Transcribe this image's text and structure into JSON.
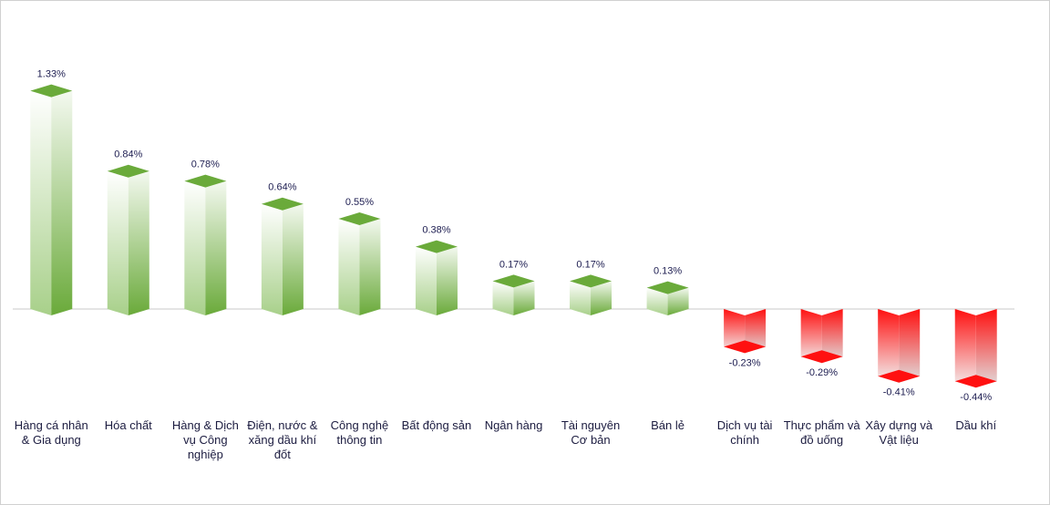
{
  "chart_data": {
    "type": "bar",
    "categories": [
      "Hàng cá nhân & Gia dụng",
      "Hóa chất",
      "Hàng & Dịch vụ Công nghiệp",
      "Điện, nước & xăng dầu khí đốt",
      "Công nghệ thông tin",
      "Bất động sản",
      "Ngân hàng",
      "Tài nguyên Cơ bản",
      "Bán lẻ",
      "Dịch vụ tài chính",
      "Thực phẩm và đồ uống",
      "Xây dựng và Vật liệu",
      "Dầu khí"
    ],
    "values": [
      1.33,
      0.84,
      0.78,
      0.64,
      0.55,
      0.38,
      0.17,
      0.17,
      0.13,
      -0.23,
      -0.29,
      -0.41,
      -0.44
    ],
    "value_labels": [
      "1.33%",
      "0.84%",
      "0.78%",
      "0.64%",
      "0.55%",
      "0.38%",
      "0.17%",
      "0.17%",
      "0.13%",
      "-0.23%",
      "-0.29%",
      "-0.41%",
      "-0.44%"
    ],
    "colors": {
      "positive": "#6aaa3a",
      "negative": "#ff1010"
    },
    "ylim": [
      -0.6,
      1.5
    ]
  }
}
